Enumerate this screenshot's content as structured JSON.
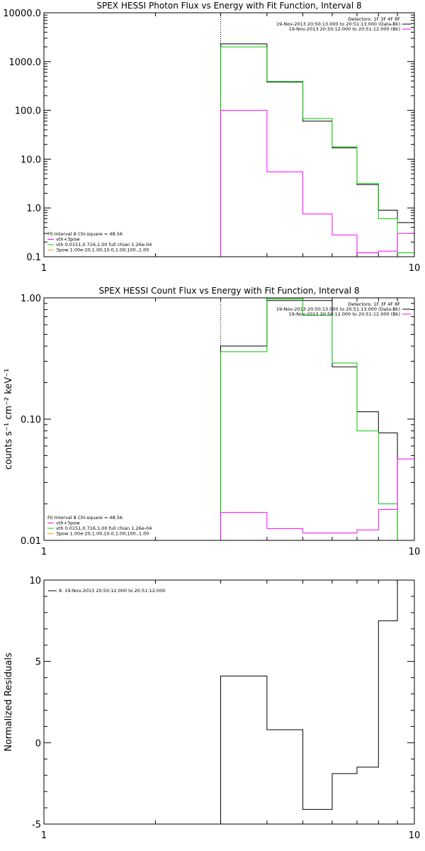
{
  "chart_data": [
    {
      "type": "line",
      "title": "SPEX HESSI Photon Flux vs Energy with Fit Function, Interval 8",
      "xlabel": "",
      "ylabel": "",
      "xscale": "log",
      "yscale": "log",
      "xlim": [
        1,
        10
      ],
      "ylim": [
        0.1,
        10000
      ],
      "xticks": [
        "1",
        "10"
      ],
      "yticks": [
        "0.1",
        "1.0",
        "10.0",
        "100.0",
        "1000.0",
        "10000.0"
      ],
      "marker_x": 3,
      "header_lines": [
        "Detectors: 1F 3F 4F 8F",
        "19-Nov-2013 20:50:13.000 to 20:51:13.000 (Data-Bk)",
        "19-Nov-2013 20:50:12.000 to 20:51:12.000 (Bk)"
      ],
      "header_colors": [
        "#000000",
        "#000000",
        "#ff00ff"
      ],
      "legend_lines": [
        "Fit Interval 8   Chi-square = 48.56",
        "vth+3pow",
        "vth 0.0151,0.716,1.00  full chian 1.26e-04",
        "3pow 1.00e-20,1.00,10.0,1.00,100.,1.00"
      ],
      "legend_colors": [
        "#000000",
        "#ff00ff",
        "#00cc00",
        "#ffa500"
      ],
      "edges": [
        3,
        4,
        5,
        6,
        7,
        8,
        9,
        10
      ],
      "series": [
        {
          "color": "#000000",
          "values": [
            2300,
            380,
            60,
            17,
            3,
            0.9,
            0.5
          ]
        },
        {
          "color": "#00cc00",
          "values": [
            2000,
            390,
            68,
            18,
            3.2,
            0.6,
            0.12
          ]
        },
        {
          "color": "#ff00ff",
          "values": [
            100,
            5.5,
            0.75,
            0.28,
            0.12,
            0.13,
            0.3
          ]
        }
      ]
    },
    {
      "type": "line",
      "title": "SPEX HESSI Count Flux vs Energy with Fit Function, Interval 8",
      "xlabel": "",
      "ylabel": "counts s⁻¹ cm⁻² keV⁻¹",
      "xscale": "log",
      "yscale": "log",
      "xlim": [
        1,
        10
      ],
      "ylim": [
        0.01,
        1.0
      ],
      "xticks": [
        "1",
        "10"
      ],
      "yticks": [
        "0.01",
        "0.10",
        "1.00"
      ],
      "marker_x": 3,
      "header_lines": [
        "Detectors: 1F 3F 4F 8F",
        "19-Nov-2013 20:50:13.000 to 20:51:13.000 (Data-Bk)",
        "19-Nov-2013 20:50:12.000 to 20:51:12.000 (Bk)"
      ],
      "header_colors": [
        "#000000",
        "#000000",
        "#ff00ff"
      ],
      "legend_lines": [
        "Fit Interval 8   Chi-square = 48.56",
        "vth+3pow",
        "vth 0.0151,0.716,1.00  full chian 1.26e-04",
        "3pow 1.00e-20,1.00,10.0,1.00,100.,1.00"
      ],
      "legend_colors": [
        "#000000",
        "#ff00ff",
        "#00cc00",
        "#ffa500"
      ],
      "edges": [
        3,
        4,
        5,
        6,
        7,
        8,
        9,
        10
      ],
      "series": [
        {
          "color": "#000000",
          "values": [
            0.4,
            0.95,
            0.95,
            0.27,
            0.115,
            0.077,
            0.01
          ]
        },
        {
          "color": "#00cc00",
          "values": [
            0.36,
            0.98,
            0.72,
            0.29,
            0.08,
            0.02,
            0.01
          ]
        },
        {
          "color": "#ff00ff",
          "values": [
            0.017,
            0.0125,
            0.0115,
            0.0115,
            0.0122,
            0.018,
            0.047
          ]
        }
      ]
    },
    {
      "type": "line",
      "title": "",
      "xlabel": "",
      "ylabel": "Normalized Residuals",
      "xscale": "log",
      "yscale": "linear",
      "xlim": [
        1,
        10
      ],
      "ylim": [
        -5,
        10
      ],
      "xticks": [
        "1",
        "10"
      ],
      "yticks": [
        "-5",
        "0",
        "5",
        "10"
      ],
      "marker_x": null,
      "header_lines": [],
      "header_colors": [],
      "legend_lines": [
        "8. 19-Nov-2013 20:50:12.000 to 20:51:12.000"
      ],
      "legend_colors": [
        "#000000"
      ],
      "edges": [
        3,
        4,
        5,
        6,
        7,
        8,
        9,
        10
      ],
      "series": [
        {
          "color": "#000000",
          "values": [
            4.1,
            0.8,
            -4.1,
            -1.9,
            -1.5,
            7.5,
            10
          ]
        }
      ]
    }
  ]
}
